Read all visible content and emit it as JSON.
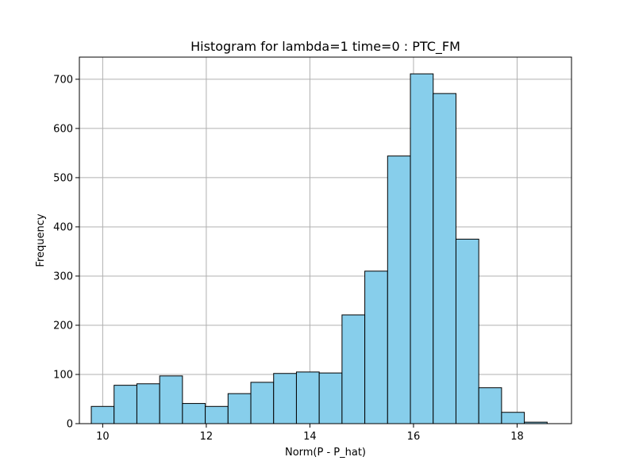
{
  "chart_data": {
    "type": "bar",
    "title": "Histogram for lambda=1 time=0 : PTC_FM",
    "xlabel": "Norm(P - P_hat)",
    "ylabel": "Frequency",
    "xlim": [
      9.55,
      19.05
    ],
    "ylim": [
      0,
      745
    ],
    "xticks": [
      10,
      12,
      14,
      16,
      18
    ],
    "yticks": [
      0,
      100,
      200,
      300,
      400,
      500,
      600,
      700
    ],
    "grid": true,
    "bar_color": "#87ceeb",
    "edge_color": "#000000",
    "grid_color": "#b0b0b0",
    "bins": [
      {
        "x0": 9.78,
        "x1": 10.22,
        "value": 35
      },
      {
        "x0": 10.22,
        "x1": 10.66,
        "value": 78
      },
      {
        "x0": 10.66,
        "x1": 11.1,
        "value": 81
      },
      {
        "x0": 11.1,
        "x1": 11.54,
        "value": 97
      },
      {
        "x0": 11.54,
        "x1": 11.98,
        "value": 41
      },
      {
        "x0": 11.98,
        "x1": 12.42,
        "value": 35
      },
      {
        "x0": 12.42,
        "x1": 12.86,
        "value": 61
      },
      {
        "x0": 12.86,
        "x1": 13.3,
        "value": 84
      },
      {
        "x0": 13.3,
        "x1": 13.74,
        "value": 102
      },
      {
        "x0": 13.74,
        "x1": 14.18,
        "value": 105
      },
      {
        "x0": 14.18,
        "x1": 14.62,
        "value": 103
      },
      {
        "x0": 14.62,
        "x1": 15.06,
        "value": 221
      },
      {
        "x0": 15.06,
        "x1": 15.5,
        "value": 310
      },
      {
        "x0": 15.5,
        "x1": 15.94,
        "value": 544
      },
      {
        "x0": 15.94,
        "x1": 16.38,
        "value": 711
      },
      {
        "x0": 16.38,
        "x1": 16.82,
        "value": 671
      },
      {
        "x0": 16.82,
        "x1": 17.26,
        "value": 375
      },
      {
        "x0": 17.26,
        "x1": 17.7,
        "value": 73
      },
      {
        "x0": 17.7,
        "x1": 18.14,
        "value": 23
      },
      {
        "x0": 18.14,
        "x1": 18.58,
        "value": 3
      }
    ]
  }
}
